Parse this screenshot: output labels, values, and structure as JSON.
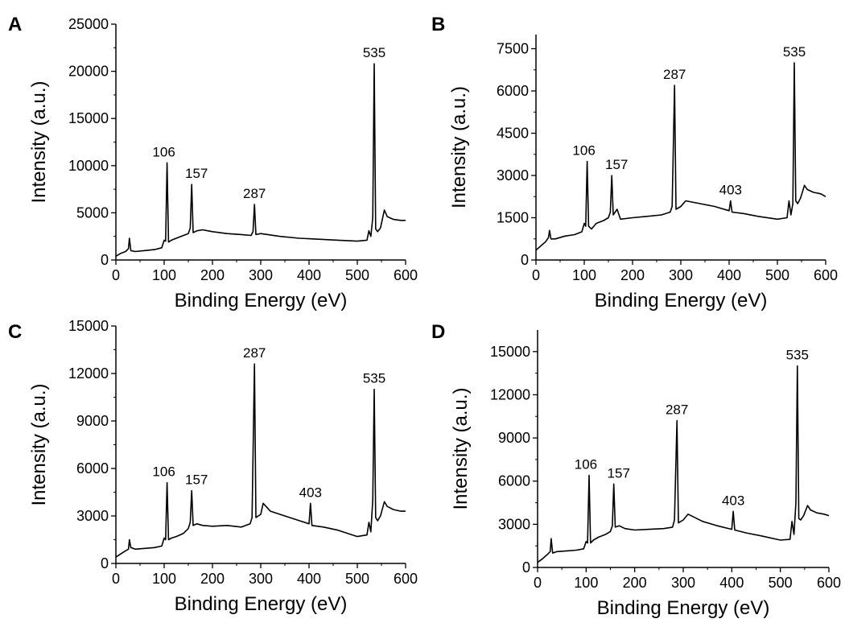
{
  "figure": {
    "colors": {
      "line": "#000000",
      "background": "#ffffff"
    }
  },
  "chart_data": [
    {
      "panel": "A",
      "type": "line",
      "xlabel": "Binding Energy (eV)",
      "ylabel": "Intensity (a.u.)",
      "xlim": [
        0,
        600
      ],
      "ylim": [
        0,
        25000
      ],
      "xticks": [
        0,
        100,
        200,
        300,
        400,
        500,
        600
      ],
      "yticks": [
        0,
        5000,
        10000,
        15000,
        20000,
        25000
      ],
      "grid": false,
      "peaks": [
        {
          "x": 106,
          "label": "106",
          "y": 10300
        },
        {
          "x": 157,
          "label": "157",
          "y": 8000
        },
        {
          "x": 287,
          "label": "287",
          "y": 5900
        },
        {
          "x": 535,
          "label": "535",
          "y": 20800
        }
      ],
      "series": [
        {
          "x": [
            0,
            10,
            20,
            26,
            28,
            31,
            40,
            60,
            80,
            95,
            100,
            103,
            106,
            109,
            115,
            125,
            140,
            150,
            154,
            157,
            160,
            168,
            180,
            200,
            230,
            260,
            280,
            284,
            287,
            290,
            300,
            340,
            380,
            420,
            460,
            500,
            520,
            524,
            528,
            532,
            535,
            538,
            542,
            548,
            556,
            562,
            575,
            590,
            600
          ],
          "y": [
            400,
            700,
            900,
            1200,
            2300,
            1000,
            900,
            1000,
            1100,
            1300,
            2100,
            2000,
            10300,
            1900,
            2100,
            2300,
            2600,
            2800,
            3400,
            8000,
            2900,
            3100,
            3200,
            3000,
            2800,
            2700,
            2600,
            3000,
            5900,
            2700,
            2800,
            2500,
            2300,
            2200,
            2100,
            2000,
            2100,
            3100,
            2500,
            4500,
            20800,
            3300,
            3000,
            3400,
            5300,
            4600,
            4300,
            4200,
            4200
          ]
        }
      ]
    },
    {
      "panel": "B",
      "type": "line",
      "xlabel": "Binding Energy (eV)",
      "ylabel": "Intensity (a.u.)",
      "xlim": [
        0,
        600
      ],
      "ylim": [
        0,
        8000
      ],
      "xticks": [
        0,
        100,
        200,
        300,
        400,
        500,
        600
      ],
      "yticks": [
        0,
        1500,
        3000,
        4500,
        6000,
        7500
      ],
      "grid": false,
      "peaks": [
        {
          "x": 106,
          "label": "106",
          "y": 3500
        },
        {
          "x": 157,
          "label": "157",
          "y": 3000
        },
        {
          "x": 287,
          "label": "287",
          "y": 6200
        },
        {
          "x": 403,
          "label": "403",
          "y": 2100
        },
        {
          "x": 535,
          "label": "535",
          "y": 7000
        }
      ],
      "series": [
        {
          "x": [
            0,
            10,
            20,
            26,
            28,
            31,
            40,
            60,
            80,
            95,
            100,
            103,
            106,
            109,
            115,
            125,
            140,
            150,
            154,
            157,
            160,
            168,
            175,
            200,
            230,
            260,
            278,
            282,
            287,
            290,
            300,
            310,
            340,
            370,
            400,
            403,
            406,
            430,
            460,
            500,
            520,
            524,
            528,
            532,
            535,
            538,
            542,
            548,
            556,
            562,
            575,
            590,
            600
          ],
          "y": [
            350,
            500,
            650,
            800,
            1050,
            750,
            750,
            850,
            900,
            1000,
            1300,
            1200,
            3500,
            1200,
            1100,
            1300,
            1400,
            1500,
            1700,
            3000,
            1600,
            1800,
            1450,
            1500,
            1550,
            1600,
            1700,
            1900,
            6200,
            1800,
            1900,
            2100,
            2000,
            1900,
            1750,
            2100,
            1700,
            1650,
            1550,
            1450,
            1500,
            2100,
            1600,
            2000,
            7000,
            2100,
            2000,
            2200,
            2650,
            2500,
            2400,
            2350,
            2250
          ]
        }
      ]
    },
    {
      "panel": "C",
      "type": "line",
      "xlabel": "Binding Energy (eV)",
      "ylabel": "Intensity (a.u.)",
      "xlim": [
        0,
        600
      ],
      "ylim": [
        0,
        15000
      ],
      "xticks": [
        0,
        100,
        200,
        300,
        400,
        500,
        600
      ],
      "yticks": [
        0,
        3000,
        6000,
        9000,
        12000,
        15000
      ],
      "grid": false,
      "peaks": [
        {
          "x": 106,
          "label": "106",
          "y": 5100
        },
        {
          "x": 157,
          "label": "157",
          "y": 4600
        },
        {
          "x": 287,
          "label": "287",
          "y": 12600
        },
        {
          "x": 403,
          "label": "403",
          "y": 3800
        },
        {
          "x": 535,
          "label": "535",
          "y": 11000
        }
      ],
      "series": [
        {
          "x": [
            0,
            10,
            20,
            26,
            28,
            31,
            40,
            60,
            80,
            95,
            100,
            103,
            106,
            109,
            115,
            125,
            140,
            150,
            154,
            157,
            160,
            168,
            180,
            200,
            230,
            260,
            278,
            282,
            287,
            290,
            300,
            305,
            320,
            350,
            380,
            400,
            403,
            406,
            430,
            460,
            500,
            520,
            524,
            528,
            532,
            535,
            538,
            542,
            548,
            556,
            562,
            575,
            590,
            600
          ],
          "y": [
            400,
            600,
            800,
            900,
            1500,
            1000,
            900,
            950,
            1000,
            1100,
            1600,
            1500,
            5100,
            1500,
            1600,
            1700,
            1900,
            2200,
            2600,
            4600,
            2400,
            2500,
            2400,
            2350,
            2400,
            2300,
            2500,
            2900,
            12600,
            2900,
            3100,
            3800,
            3300,
            3000,
            2700,
            2500,
            3800,
            2400,
            2300,
            2100,
            1700,
            1800,
            2600,
            2000,
            4000,
            11000,
            2900,
            2700,
            3000,
            3900,
            3600,
            3400,
            3300,
            3300
          ]
        }
      ]
    },
    {
      "panel": "D",
      "type": "line",
      "xlabel": "Binding Energy (eV)",
      "ylabel": "Intensity (a.u.)",
      "xlim": [
        0,
        600
      ],
      "ylim": [
        0,
        16500
      ],
      "xticks": [
        0,
        100,
        200,
        300,
        400,
        500,
        600
      ],
      "yticks": [
        0,
        3000,
        6000,
        9000,
        12000,
        15000
      ],
      "grid": false,
      "peaks": [
        {
          "x": 106,
          "label": "106",
          "y": 6400
        },
        {
          "x": 157,
          "label": "157",
          "y": 5800
        },
        {
          "x": 287,
          "label": "287",
          "y": 10200
        },
        {
          "x": 403,
          "label": "403",
          "y": 3900
        },
        {
          "x": 535,
          "label": "535",
          "y": 14000
        }
      ],
      "series": [
        {
          "x": [
            0,
            10,
            20,
            26,
            28,
            31,
            40,
            60,
            80,
            95,
            100,
            103,
            106,
            109,
            115,
            125,
            140,
            150,
            154,
            157,
            160,
            168,
            180,
            200,
            230,
            260,
            278,
            282,
            287,
            290,
            300,
            310,
            340,
            370,
            400,
            403,
            406,
            430,
            460,
            500,
            520,
            524,
            528,
            532,
            535,
            538,
            542,
            548,
            556,
            562,
            575,
            590,
            600
          ],
          "y": [
            350,
            600,
            900,
            1100,
            2000,
            1000,
            1100,
            1150,
            1200,
            1300,
            1800,
            1700,
            6400,
            1700,
            1900,
            2100,
            2300,
            2500,
            2900,
            5800,
            2800,
            2900,
            2700,
            2600,
            2650,
            2700,
            2800,
            3300,
            10200,
            3100,
            3300,
            3700,
            3200,
            2900,
            2650,
            3900,
            2600,
            2400,
            2200,
            1900,
            1950,
            3200,
            2300,
            4500,
            14000,
            3400,
            3300,
            3600,
            4300,
            4000,
            3800,
            3700,
            3600
          ]
        }
      ]
    }
  ]
}
